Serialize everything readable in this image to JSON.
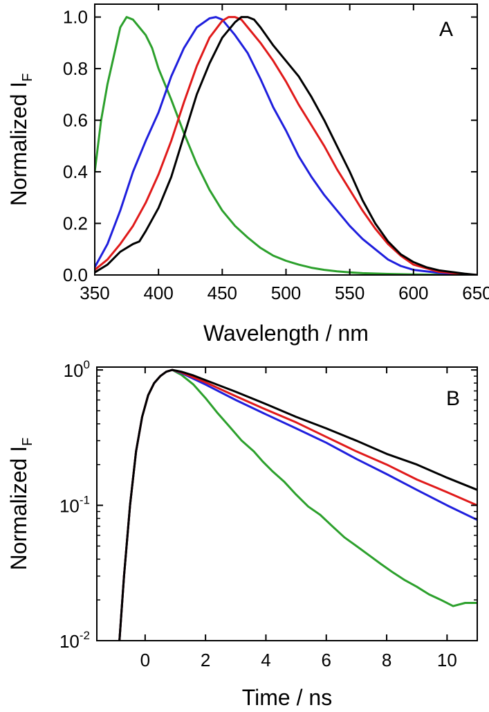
{
  "chart_data": [
    {
      "type": "line",
      "panel_label": "A",
      "xlabel": "Wavelength / nm",
      "ylabel_main": "Normalized I",
      "ylabel_sub": "F",
      "xlim": [
        350,
        650
      ],
      "ylim": [
        0.0,
        1.05
      ],
      "xscale": "linear",
      "yscale": "linear",
      "xticks": [
        350,
        400,
        450,
        500,
        550,
        600,
        650
      ],
      "xtick_labels": [
        "350",
        "400",
        "450",
        "500",
        "550",
        "600",
        "650"
      ],
      "yticks": [
        0.0,
        0.2,
        0.4,
        0.6,
        0.8,
        1.0
      ],
      "ytick_labels": [
        "0.0",
        "0.2",
        "0.4",
        "0.6",
        "0.8",
        "1.0"
      ],
      "grid": false,
      "series": [
        {
          "color": "#2ca02c",
          "x": [
            350,
            355,
            360,
            365,
            370,
            375,
            380,
            385,
            390,
            395,
            400,
            410,
            420,
            430,
            440,
            450,
            460,
            470,
            480,
            490,
            500,
            510,
            520,
            530,
            540,
            550,
            560,
            580,
            600,
            620,
            640,
            650
          ],
          "y": [
            0.4,
            0.6,
            0.74,
            0.85,
            0.96,
            1.0,
            0.99,
            0.96,
            0.93,
            0.88,
            0.8,
            0.68,
            0.55,
            0.43,
            0.33,
            0.25,
            0.19,
            0.145,
            0.105,
            0.075,
            0.055,
            0.04,
            0.028,
            0.02,
            0.014,
            0.01,
            0.007,
            0.004,
            0.002,
            0.001,
            0.0,
            0.0
          ]
        },
        {
          "color": "#1f1fdd",
          "x": [
            350,
            360,
            370,
            380,
            390,
            400,
            410,
            420,
            430,
            440,
            445,
            450,
            460,
            470,
            480,
            490,
            500,
            510,
            520,
            530,
            540,
            550,
            560,
            570,
            580,
            590,
            600,
            620,
            640,
            650
          ],
          "y": [
            0.03,
            0.12,
            0.25,
            0.4,
            0.52,
            0.63,
            0.77,
            0.88,
            0.96,
            0.995,
            1.0,
            0.99,
            0.93,
            0.86,
            0.76,
            0.65,
            0.56,
            0.46,
            0.38,
            0.31,
            0.25,
            0.19,
            0.14,
            0.1,
            0.06,
            0.035,
            0.02,
            0.008,
            0.002,
            0.0
          ]
        },
        {
          "color": "#e01a1a",
          "x": [
            350,
            360,
            370,
            380,
            390,
            400,
            410,
            420,
            430,
            440,
            450,
            455,
            460,
            465,
            470,
            480,
            490,
            500,
            510,
            520,
            530,
            540,
            550,
            560,
            570,
            580,
            590,
            600,
            620,
            640,
            650
          ],
          "y": [
            0.02,
            0.06,
            0.12,
            0.19,
            0.28,
            0.39,
            0.52,
            0.67,
            0.81,
            0.92,
            0.985,
            1.0,
            1.0,
            0.99,
            0.96,
            0.9,
            0.83,
            0.75,
            0.66,
            0.58,
            0.5,
            0.41,
            0.33,
            0.25,
            0.18,
            0.12,
            0.075,
            0.04,
            0.012,
            0.003,
            0.0
          ]
        },
        {
          "color": "#000000",
          "x": [
            350,
            360,
            370,
            380,
            385,
            390,
            400,
            410,
            420,
            430,
            440,
            450,
            460,
            465,
            470,
            475,
            480,
            490,
            500,
            510,
            520,
            530,
            540,
            550,
            560,
            570,
            580,
            590,
            600,
            610,
            620,
            640,
            650
          ],
          "y": [
            0.01,
            0.04,
            0.09,
            0.12,
            0.13,
            0.17,
            0.26,
            0.38,
            0.54,
            0.7,
            0.82,
            0.92,
            0.98,
            1.0,
            1.0,
            0.99,
            0.96,
            0.89,
            0.83,
            0.77,
            0.69,
            0.6,
            0.5,
            0.4,
            0.29,
            0.2,
            0.13,
            0.08,
            0.05,
            0.03,
            0.018,
            0.005,
            0.0
          ]
        }
      ]
    },
    {
      "type": "line",
      "panel_label": "B",
      "xlabel": "Time / ns",
      "ylabel_main": "Normalized I",
      "ylabel_sub": "F",
      "xlim": [
        -1.6,
        11
      ],
      "ylim": [
        0.01,
        1.05
      ],
      "xscale": "linear",
      "yscale": "log",
      "xticks": [
        0,
        2,
        4,
        6,
        8,
        10
      ],
      "xtick_labels": [
        "0",
        "2",
        "4",
        "6",
        "8",
        "10"
      ],
      "yticks": [
        0.01,
        0.1,
        1
      ],
      "ytick_labels": [
        {
          "base": "10",
          "exp": "-2"
        },
        {
          "base": "10",
          "exp": "-1"
        },
        {
          "base": "10",
          "exp": "0"
        }
      ],
      "grid": false,
      "series": [
        {
          "color": "#2ca02c",
          "x": [
            -0.85,
            -0.7,
            -0.5,
            -0.3,
            -0.1,
            0.1,
            0.3,
            0.5,
            0.7,
            0.9,
            1.2,
            1.6,
            2.0,
            2.4,
            2.8,
            3.2,
            3.6,
            3.9,
            4.2,
            4.6,
            5.0,
            5.4,
            5.8,
            6.2,
            6.6,
            7.0,
            7.4,
            7.8,
            8.2,
            8.6,
            9.0,
            9.4,
            9.8,
            10.2,
            10.6,
            11.0
          ],
          "y": [
            0.01,
            0.03,
            0.1,
            0.25,
            0.45,
            0.65,
            0.8,
            0.9,
            0.97,
            1.0,
            0.92,
            0.78,
            0.62,
            0.48,
            0.38,
            0.3,
            0.25,
            0.21,
            0.18,
            0.15,
            0.12,
            0.098,
            0.085,
            0.07,
            0.058,
            0.05,
            0.043,
            0.037,
            0.032,
            0.028,
            0.025,
            0.022,
            0.02,
            0.018,
            0.019,
            0.019
          ]
        },
        {
          "color": "#1f1fdd",
          "x": [
            -0.85,
            -0.7,
            -0.5,
            -0.3,
            -0.1,
            0.1,
            0.3,
            0.5,
            0.7,
            0.9,
            1.2,
            1.6,
            2.0,
            3.0,
            4.0,
            5.0,
            6.0,
            7.0,
            8.0,
            9.0,
            10.0,
            11.0
          ],
          "y": [
            0.01,
            0.03,
            0.1,
            0.25,
            0.45,
            0.65,
            0.8,
            0.9,
            0.97,
            1.0,
            0.95,
            0.86,
            0.78,
            0.6,
            0.47,
            0.37,
            0.29,
            0.22,
            0.17,
            0.13,
            0.1,
            0.078
          ]
        },
        {
          "color": "#e01a1a",
          "x": [
            -0.85,
            -0.7,
            -0.5,
            -0.3,
            -0.1,
            0.1,
            0.3,
            0.5,
            0.7,
            0.9,
            1.2,
            1.6,
            2.0,
            3.0,
            4.0,
            5.0,
            6.0,
            7.0,
            8.0,
            9.0,
            10.0,
            11.0
          ],
          "y": [
            0.01,
            0.03,
            0.1,
            0.25,
            0.45,
            0.65,
            0.8,
            0.9,
            0.97,
            1.0,
            0.96,
            0.88,
            0.81,
            0.64,
            0.51,
            0.41,
            0.32,
            0.25,
            0.2,
            0.155,
            0.125,
            0.1
          ]
        },
        {
          "color": "#000000",
          "x": [
            -0.85,
            -0.7,
            -0.5,
            -0.3,
            -0.1,
            0.1,
            0.3,
            0.5,
            0.7,
            0.9,
            1.2,
            1.6,
            2.0,
            3.0,
            4.0,
            5.0,
            6.0,
            7.0,
            8.0,
            9.0,
            10.0,
            11.0
          ],
          "y": [
            0.01,
            0.03,
            0.1,
            0.25,
            0.45,
            0.65,
            0.8,
            0.9,
            0.97,
            1.0,
            0.97,
            0.91,
            0.84,
            0.69,
            0.56,
            0.45,
            0.37,
            0.3,
            0.24,
            0.2,
            0.16,
            0.13
          ]
        }
      ]
    }
  ]
}
